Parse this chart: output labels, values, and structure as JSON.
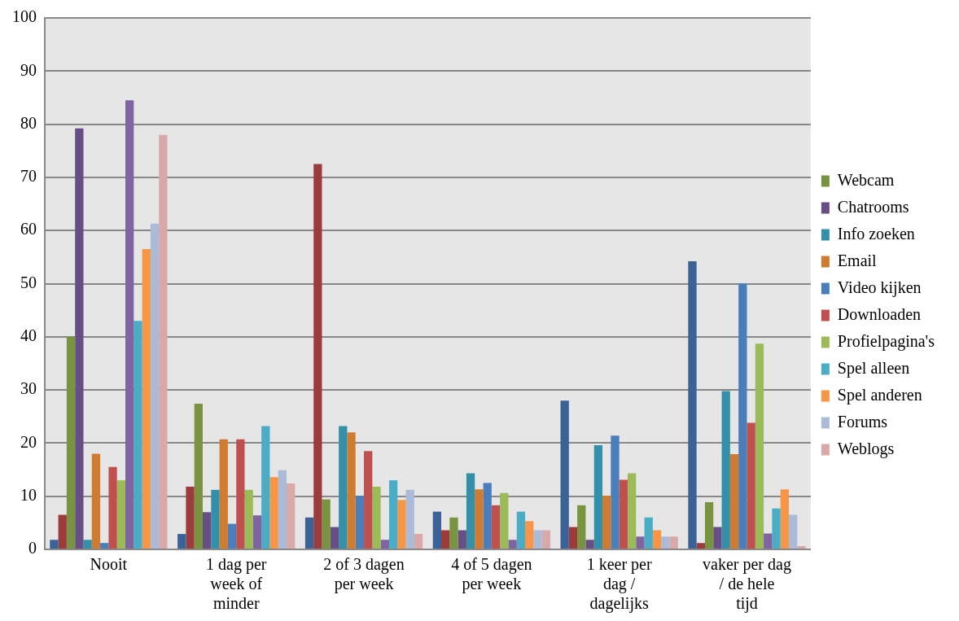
{
  "chart_data": {
    "type": "bar",
    "categories": [
      "Nooit",
      "1 dag per week of minder",
      "2 of 3 dagen per week",
      "4 of 5 dagen per week",
      "1 keer per dag / dagelijks",
      "vaker per dag / de hele tijd"
    ],
    "series": [
      {
        "color": "#3a6296",
        "values": [
          1.8,
          2.9,
          6,
          7.1,
          28,
          54.2
        ]
      },
      {
        "color": "#9c3b3b",
        "values": [
          6.5,
          11.8,
          72.5,
          3.6,
          4.2,
          1.2
        ]
      },
      {
        "name": "Webcam",
        "color": "#789440",
        "values": [
          40,
          27.4,
          9.4,
          6,
          8.3,
          8.9
        ]
      },
      {
        "name": "Chatrooms",
        "color": "#674f85",
        "values": [
          79.2,
          7,
          4.2,
          3.6,
          1.8,
          4.2
        ]
      },
      {
        "name": "Info zoeken",
        "color": "#3490a8",
        "values": [
          1.8,
          11.2,
          23.2,
          14.3,
          19.6,
          29.8
        ]
      },
      {
        "name": "Email",
        "color": "#d07c30",
        "values": [
          18,
          20.7,
          22,
          11.3,
          10.1,
          17.9
        ]
      },
      {
        "name": "Video kijken",
        "color": "#4a7ebb",
        "values": [
          1.2,
          4.8,
          10.1,
          12.5,
          21.4,
          50
        ]
      },
      {
        "name": "Downloaden",
        "color": "#c0504d",
        "values": [
          15.5,
          20.7,
          18.5,
          8.3,
          13.1,
          23.8
        ]
      },
      {
        "name": "Profielpagina's",
        "color": "#9bbb59",
        "values": [
          13,
          11.2,
          11.8,
          10.6,
          14.3,
          38.7
        ]
      },
      {
        "color": "#8064a2",
        "values": [
          84.5,
          6.4,
          1.8,
          1.8,
          2.4,
          3
        ]
      },
      {
        "name": "Spel alleen",
        "color": "#4bacc6",
        "values": [
          43,
          23.2,
          13,
          7.1,
          6,
          7.7
        ]
      },
      {
        "name": "Spel anderen",
        "color": "#f79646",
        "values": [
          56.5,
          13.6,
          9.3,
          5.3,
          3.6,
          11.3
        ]
      },
      {
        "name": "Forums",
        "color": "#aabad7",
        "values": [
          61.3,
          14.9,
          11.2,
          3.6,
          2.4,
          6.5
        ]
      },
      {
        "name": "Weblogs",
        "color": "#d9a9a9",
        "values": [
          78,
          12.4,
          2.9,
          3.6,
          2.4,
          0.6
        ]
      }
    ],
    "ylim": [
      0,
      100
    ],
    "yticks": [
      0,
      10,
      20,
      30,
      40,
      50,
      60,
      70,
      80,
      90,
      100
    ],
    "grid": "y",
    "legend": "right"
  }
}
